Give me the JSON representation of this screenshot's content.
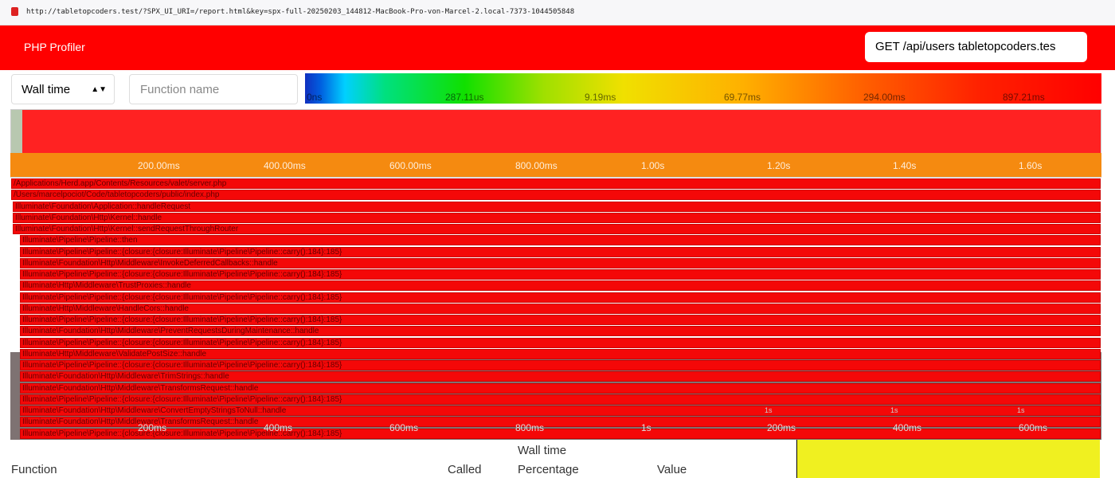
{
  "browser": {
    "url": "http://tabletopcoders.test/?SPX_UI_URI=/report.html&key=spx-full-20250203_144812-MacBook-Pro-von-Marcel-2.local-7373-1044505848"
  },
  "header": {
    "title": "PHP Profiler",
    "request_select": "GET /api/users tabletopcoders.tes"
  },
  "toolbar": {
    "metric_select": "Wall time",
    "search_placeholder": "Function name",
    "scale_labels": [
      "0ns",
      "287.11us",
      "9.19ms",
      "69.77ms",
      "294.00ms",
      "897.21ms"
    ]
  },
  "timeline": {
    "ticks": [
      "200.00ms",
      "400.00ms",
      "600.00ms",
      "800.00ms",
      "1.00s",
      "1.20s",
      "1.40s",
      "1.60s"
    ]
  },
  "flamegraph": {
    "rows": [
      "/Applications/Herd.app/Contents/Resources/valet/server.php",
      "/Users/marcelpociot/Code/tabletopcoders/public/index.php",
      "Illuminate\\Foundation\\Application::handleRequest",
      "Illuminate\\Foundation\\Http\\Kernel::handle",
      "Illuminate\\Foundation\\Http\\Kernel::sendRequestThroughRouter",
      "Illuminate\\Pipeline\\Pipeline::then",
      "Illuminate\\Pipeline\\Pipeline::{closure:{closure:Illuminate\\Pipeline\\Pipeline::carry():184}:185}",
      "Illuminate\\Foundation\\Http\\Middleware\\InvokeDeferredCallbacks::handle",
      "Illuminate\\Pipeline\\Pipeline::{closure:{closure:Illuminate\\Pipeline\\Pipeline::carry():184}:185}",
      "Illuminate\\Http\\Middleware\\TrustProxies::handle",
      "Illuminate\\Pipeline\\Pipeline::{closure:{closure:Illuminate\\Pipeline\\Pipeline::carry():184}:185}",
      "Illuminate\\Http\\Middleware\\HandleCors::handle",
      "Illuminate\\Pipeline\\Pipeline::{closure:{closure:Illuminate\\Pipeline\\Pipeline::carry():184}:185}",
      "Illuminate\\Foundation\\Http\\Middleware\\PreventRequestsDuringMaintenance::handle",
      "Illuminate\\Pipeline\\Pipeline::{closure:{closure:Illuminate\\Pipeline\\Pipeline::carry():184}:185}",
      "Illuminate\\Http\\Middleware\\ValidatePostSize::handle",
      "Illuminate\\Pipeline\\Pipeline::{closure:{closure:Illuminate\\Pipeline\\Pipeline::carry():184}:185}",
      "Illuminate\\Foundation\\Http\\Middleware\\TrimStrings::handle",
      "Illuminate\\Foundation\\Http\\Middleware\\TransformsRequest::handle",
      "Illuminate\\Pipeline\\Pipeline::{closure:{closure:Illuminate\\Pipeline\\Pipeline::carry():184}:185}",
      "Illuminate\\Foundation\\Http\\Middleware\\ConvertEmptyStringsToNull::handle",
      "Illuminate\\Foundation\\Http\\Middleware\\TransformsRequest::handle",
      "Illuminate\\Pipeline\\Pipeline::{closure:{closure:Illuminate\\Pipeline\\Pipeline::carry():184}:185}"
    ]
  },
  "overlay": {
    "top_ticks": [
      "1s",
      "1s",
      "1s"
    ],
    "ticks": [
      "200ms",
      "400ms",
      "600ms",
      "800ms",
      "1s",
      "200ms",
      "400ms",
      "600ms"
    ]
  },
  "table": {
    "group_header": "Wall time",
    "columns": [
      "Function",
      "Called",
      "Percentage",
      "Value"
    ]
  }
}
